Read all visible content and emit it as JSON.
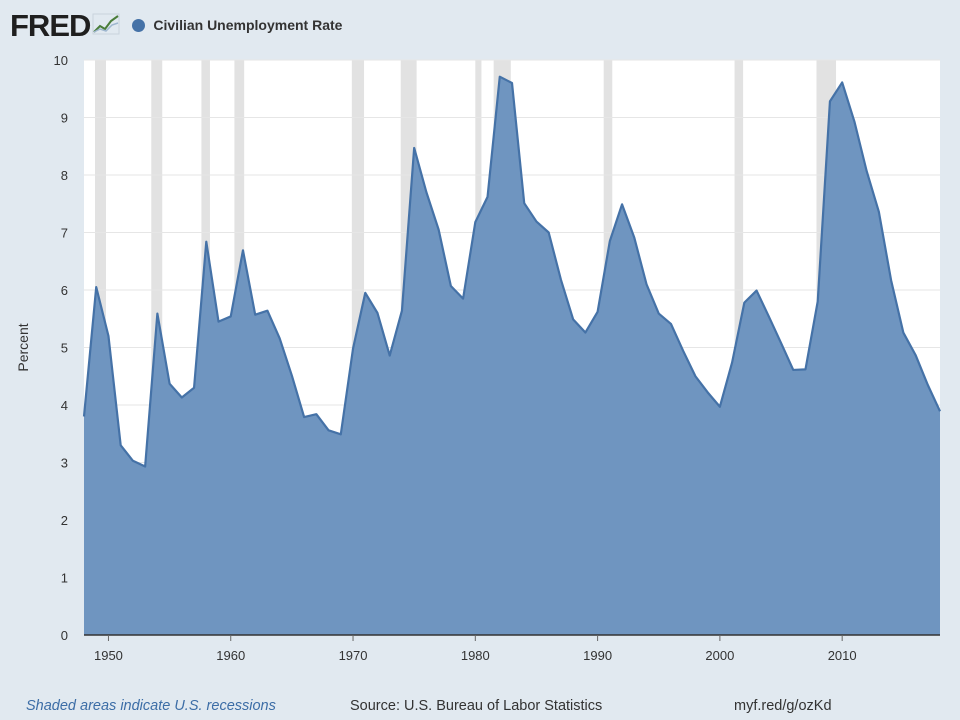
{
  "brand": {
    "logo_text": "FRED"
  },
  "legend": {
    "label": "Civilian Unemployment Rate",
    "color": "#4572a7"
  },
  "footer": {
    "recession_note": "Shaded areas indicate U.S. recessions",
    "source": "Source: U.S. Bureau of Labor Statistics",
    "short_url": "myf.red/g/ozKd"
  },
  "chart_data": {
    "type": "area",
    "title": "",
    "xlabel": "",
    "ylabel": "Percent",
    "xlim": [
      1948,
      2018
    ],
    "ylim": [
      0,
      10
    ],
    "yticks": [
      0,
      1,
      2,
      3,
      4,
      5,
      6,
      7,
      8,
      9,
      10
    ],
    "xticks": [
      1950,
      1960,
      1970,
      1980,
      1990,
      2000,
      2010
    ],
    "grid": true,
    "colors": {
      "fill": "#6f95c0",
      "line": "#4572a7",
      "recession": "#e2e2e2",
      "plot_bg": "#ffffff"
    },
    "series": [
      {
        "name": "Civilian Unemployment Rate",
        "x": [
          1948,
          1949,
          1950,
          1951,
          1952,
          1953,
          1954,
          1955,
          1956,
          1957,
          1958,
          1959,
          1960,
          1961,
          1962,
          1963,
          1964,
          1965,
          1966,
          1967,
          1968,
          1969,
          1970,
          1971,
          1972,
          1973,
          1974,
          1975,
          1976,
          1977,
          1978,
          1979,
          1980,
          1981,
          1982,
          1983,
          1984,
          1985,
          1986,
          1987,
          1988,
          1989,
          1990,
          1991,
          1992,
          1993,
          1994,
          1995,
          1996,
          1997,
          1998,
          1999,
          2000,
          2001,
          2002,
          2003,
          2004,
          2005,
          2006,
          2007,
          2008,
          2009,
          2010,
          2011,
          2012,
          2013,
          2014,
          2015,
          2016,
          2017,
          2018
        ],
        "values": [
          3.8,
          6.05,
          5.2,
          3.3,
          3.03,
          2.93,
          5.59,
          4.37,
          4.13,
          4.3,
          6.84,
          5.45,
          5.54,
          6.69,
          5.57,
          5.64,
          5.16,
          4.51,
          3.79,
          3.84,
          3.56,
          3.49,
          4.98,
          5.95,
          5.6,
          4.86,
          5.64,
          8.47,
          7.7,
          7.05,
          6.07,
          5.85,
          7.18,
          7.62,
          9.71,
          9.6,
          7.51,
          7.19,
          7.0,
          6.18,
          5.49,
          5.26,
          5.62,
          6.85,
          7.49,
          6.91,
          6.1,
          5.59,
          5.41,
          4.94,
          4.5,
          4.22,
          3.97,
          4.74,
          5.78,
          5.99,
          5.54,
          5.08,
          4.61,
          4.62,
          5.8,
          9.28,
          9.61,
          8.93,
          8.07,
          7.36,
          6.17,
          5.26,
          4.87,
          4.35,
          3.89
        ]
      }
    ],
    "recessions": [
      [
        1948.9,
        1949.8
      ],
      [
        1953.5,
        1954.4
      ],
      [
        1957.6,
        1958.3
      ],
      [
        1960.3,
        1961.1
      ],
      [
        1969.9,
        1970.9
      ],
      [
        1973.9,
        1975.2
      ],
      [
        1980.0,
        1980.5
      ],
      [
        1981.5,
        1982.9
      ],
      [
        1990.5,
        1991.2
      ],
      [
        2001.2,
        2001.9
      ],
      [
        2007.9,
        2009.5
      ]
    ]
  }
}
